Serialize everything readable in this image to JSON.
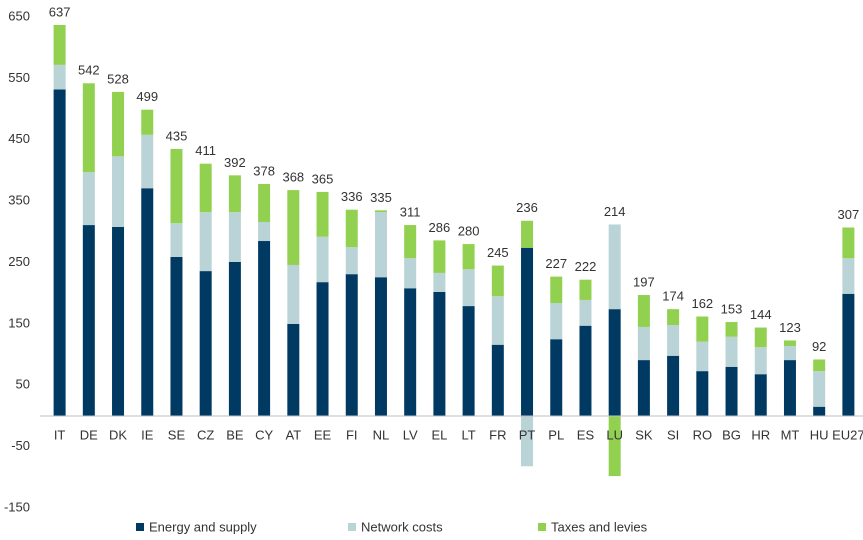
{
  "chart_data": {
    "type": "bar",
    "stacked": true,
    "categories": [
      "IT",
      "DE",
      "DK",
      "IE",
      "SE",
      "CZ",
      "BE",
      "CY",
      "AT",
      "EE",
      "FI",
      "NL",
      "LV",
      "EL",
      "LT",
      "FR",
      "PT",
      "PL",
      "ES",
      "LU",
      "SK",
      "SI",
      "RO",
      "BG",
      "HR",
      "MT",
      "HU",
      "EU27"
    ],
    "series": [
      {
        "name": "Energy and supply",
        "color": "#003a63",
        "values": [
          532,
          311,
          308,
          371,
          259,
          236,
          251,
          285,
          150,
          218,
          231,
          226,
          208,
          202,
          179,
          116,
          274,
          125,
          147,
          174,
          91,
          98,
          73,
          80,
          68,
          91,
          15,
          199
        ]
      },
      {
        "name": "Network costs",
        "color": "#b9d3d6",
        "values": [
          40,
          86,
          115,
          87,
          55,
          96,
          81,
          31,
          96,
          74,
          44,
          106,
          49,
          31,
          60,
          79,
          -82,
          59,
          42,
          138,
          54,
          50,
          48,
          49,
          44,
          23,
          58,
          58
        ]
      },
      {
        "name": "Taxes and levies",
        "color": "#92d050",
        "values": [
          65,
          145,
          105,
          41,
          121,
          79,
          60,
          62,
          122,
          73,
          61,
          3,
          54,
          53,
          41,
          50,
          44,
          43,
          33,
          -98,
          52,
          26,
          41,
          24,
          32,
          9,
          19,
          50
        ]
      }
    ],
    "totals": [
      637,
      542,
      528,
      499,
      435,
      411,
      392,
      378,
      368,
      365,
      336,
      335,
      311,
      286,
      280,
      245,
      236,
      227,
      222,
      214,
      197,
      174,
      162,
      153,
      144,
      123,
      92,
      307
    ],
    "ylim": [
      -150,
      650
    ],
    "yticks": [
      -150,
      -50,
      50,
      150,
      250,
      350,
      450,
      550,
      650
    ],
    "legend": "bottom"
  }
}
